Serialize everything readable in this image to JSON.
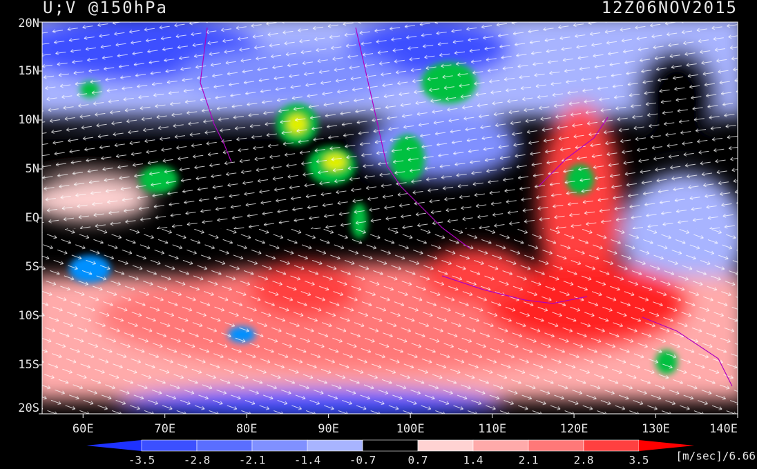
{
  "header": {
    "title": "U;V @150hPa",
    "time": "12Z06NOV2015"
  },
  "map": {
    "xlim": [
      55,
      140
    ],
    "ylim": [
      -20,
      20
    ],
    "lon_ticks": [
      {
        "value": 60,
        "label": "60E"
      },
      {
        "value": 70,
        "label": "70E"
      },
      {
        "value": 80,
        "label": "80E"
      },
      {
        "value": 90,
        "label": "90E"
      },
      {
        "value": 100,
        "label": "100E"
      },
      {
        "value": 110,
        "label": "110E"
      },
      {
        "value": 120,
        "label": "120E"
      },
      {
        "value": 130,
        "label": "130E"
      },
      {
        "value": 140,
        "label": "140E"
      }
    ],
    "lat_ticks": [
      {
        "value": 20,
        "label": "20N"
      },
      {
        "value": 15,
        "label": "15N"
      },
      {
        "value": 10,
        "label": "10N"
      },
      {
        "value": 5,
        "label": "5N"
      },
      {
        "value": 0,
        "label": "EQ"
      },
      {
        "value": -5,
        "label": "5S"
      },
      {
        "value": -10,
        "label": "10S"
      },
      {
        "value": -15,
        "label": "15S"
      },
      {
        "value": -20,
        "label": "20S"
      }
    ]
  },
  "colorbar": {
    "levels": [
      -3.5,
      -2.8,
      -2.1,
      -1.4,
      -0.7,
      0.7,
      1.4,
      2.1,
      2.8,
      3.5
    ],
    "colors": [
      "#1e32ff",
      "#3c50ff",
      "#5a6eff",
      "#8090ff",
      "#a8b4ff",
      "#000000",
      "#ffd2d2",
      "#ffaaaa",
      "#ff7878",
      "#ff4040",
      "#ff0000"
    ],
    "units": "[m/sec]/6.66"
  }
}
